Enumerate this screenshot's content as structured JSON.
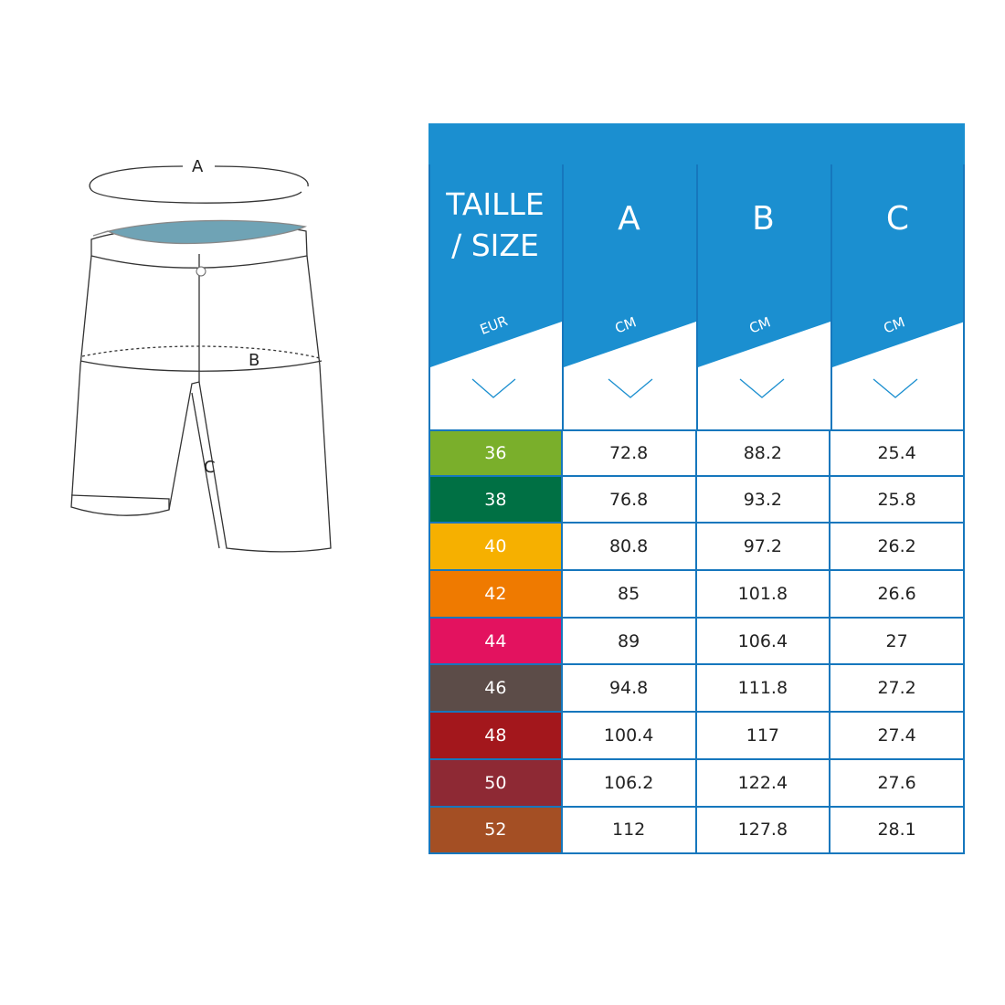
{
  "drawing": {
    "labels": {
      "a": "A",
      "b": "B",
      "c": "C"
    }
  },
  "colors": {
    "header": "#1b8fd0",
    "border": "#1677bd"
  },
  "table": {
    "headers": [
      {
        "title_line1": "TAILLE",
        "title_line2": "/ SIZE",
        "unit": "EUR",
        "icon": "chevron-down-icon"
      },
      {
        "title_line1": "A",
        "unit": "CM",
        "icon": "chevron-down-icon"
      },
      {
        "title_line1": "B",
        "unit": "CM",
        "icon": "chevron-down-icon"
      },
      {
        "title_line1": "C",
        "unit": "CM",
        "icon": "chevron-down-icon"
      }
    ],
    "rows": [
      {
        "size": "36",
        "color": "#7aaf2b",
        "a": "72.8",
        "b": "88.2",
        "c": "25.4"
      },
      {
        "size": "38",
        "color": "#007044",
        "a": "76.8",
        "b": "93.2",
        "c": "25.8"
      },
      {
        "size": "40",
        "color": "#f6b000",
        "a": "80.8",
        "b": "97.2",
        "c": "26.2"
      },
      {
        "size": "42",
        "color": "#ef7a00",
        "a": "85",
        "b": "101.8",
        "c": "26.6"
      },
      {
        "size": "44",
        "color": "#e3125f",
        "a": "89",
        "b": "106.4",
        "c": "27"
      },
      {
        "size": "46",
        "color": "#5c4c48",
        "a": "94.8",
        "b": "111.8",
        "c": "27.2"
      },
      {
        "size": "48",
        "color": "#a3171c",
        "a": "100.4",
        "b": "117",
        "c": "27.4"
      },
      {
        "size": "50",
        "color": "#8e2934",
        "a": "106.2",
        "b": "122.4",
        "c": "27.6"
      },
      {
        "size": "52",
        "color": "#a44f24",
        "a": "112",
        "b": "127.8",
        "c": "28.1"
      }
    ]
  }
}
